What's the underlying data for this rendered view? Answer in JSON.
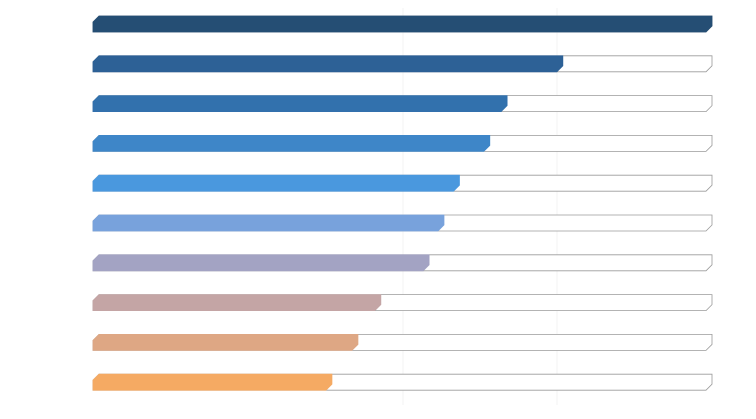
{
  "chart_data": {
    "type": "bar",
    "orientation": "horizontal",
    "values": [
      100,
      75.9,
      66.9,
      64.1,
      59.2,
      56.7,
      54.3,
      46.5,
      42.8,
      38.6
    ],
    "colors": [
      "#254e74",
      "#2d6196",
      "#3271ad",
      "#3e86c8",
      "#4a98de",
      "#78a2dc",
      "#a3a3c3",
      "#c4a5a5",
      "#dea784",
      "#f5aa63"
    ],
    "xlim": [
      0,
      100
    ]
  }
}
